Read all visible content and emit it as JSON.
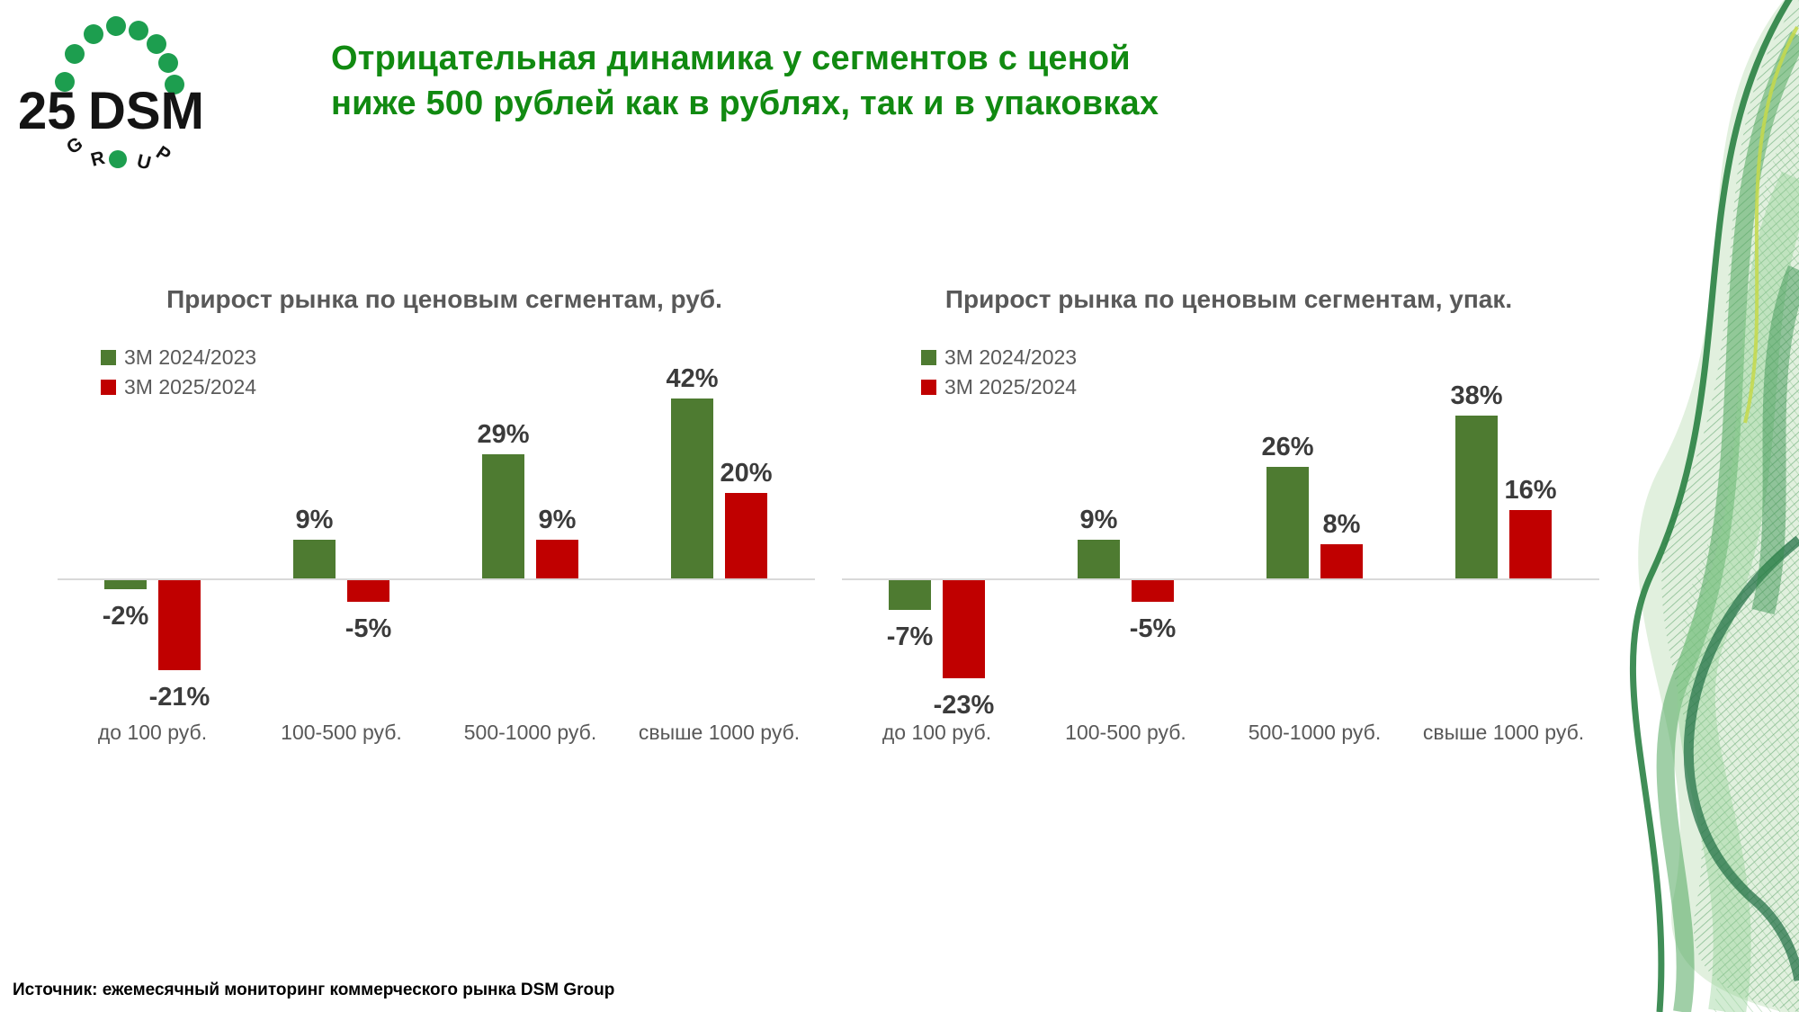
{
  "slide": {
    "title_line1": "Отрицательная динамика у сегментов с ценой",
    "title_line2": "ниже 500 рублей как в рублях, так и в упаковках",
    "source": "Источник: ежемесячный мониторинг коммерческого рынка DSM Group"
  },
  "logo": {
    "number": "25",
    "name": "DSM",
    "group_letters": [
      "G",
      "R",
      "U",
      "P"
    ]
  },
  "colors": {
    "title_green": "#118a11",
    "bar_green": "#4e7b31",
    "bar_red": "#c00000",
    "text_gray": "#595959",
    "value_label_gray": "#3b3b3b",
    "axis_line": "#d9d9d9",
    "logo_dot_green": "#1d9e4f"
  },
  "chart_data": [
    {
      "type": "bar",
      "title": "Прирост рынка по ценовым сегментам, руб.",
      "categories": [
        "до 100 руб.",
        "100-500 руб.",
        "500-1000 руб.",
        "свыше 1000 руб."
      ],
      "series": [
        {
          "name": "3М 2024/2023",
          "color": "#4e7b31",
          "values": [
            -2,
            9,
            29,
            42
          ]
        },
        {
          "name": "3М 2025/2024",
          "color": "#c00000",
          "values": [
            -21,
            -5,
            9,
            20
          ]
        }
      ],
      "value_suffix": "%",
      "ylim": [
        -25,
        45
      ],
      "gridlines": false,
      "legend_position": "top-left"
    },
    {
      "type": "bar",
      "title": "Прирост рынка по ценовым сегментам, упак.",
      "categories": [
        "до 100 руб.",
        "100-500 руб.",
        "500-1000 руб.",
        "свыше 1000 руб."
      ],
      "series": [
        {
          "name": "3М 2024/2023",
          "color": "#4e7b31",
          "values": [
            -7,
            9,
            26,
            38
          ]
        },
        {
          "name": "3М 2025/2024",
          "color": "#c00000",
          "values": [
            -23,
            -5,
            8,
            16
          ]
        }
      ],
      "value_suffix": "%",
      "ylim": [
        -25,
        45
      ],
      "gridlines": false,
      "legend_position": "top-left"
    }
  ]
}
